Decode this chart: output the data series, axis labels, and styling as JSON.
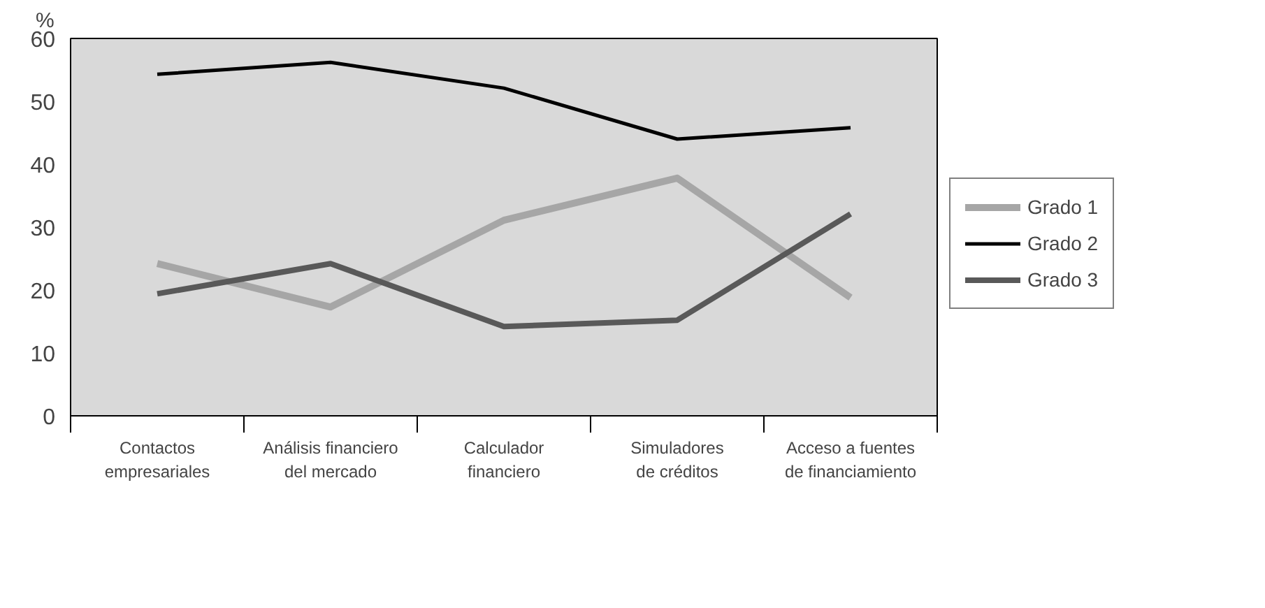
{
  "chart_data": {
    "type": "line",
    "ylabel": "%",
    "categories": [
      "Contactos\nempresariales",
      "Análisis financiero\ndel mercado",
      "Calculador\nfinanciero",
      "Simuladores\nde créditos",
      "Acceso a fuentes\nde financiamiento"
    ],
    "series": [
      {
        "name": "Grado 1",
        "color": "#a6a6a6",
        "values": [
          24.2,
          17.3,
          31.1,
          37.8,
          18.8
        ]
      },
      {
        "name": "Grado 2",
        "color": "#000000",
        "values": [
          54.3,
          56.2,
          52.1,
          44.0,
          45.8
        ]
      },
      {
        "name": "Grado 3",
        "color": "#595959",
        "values": [
          19.4,
          24.2,
          14.2,
          15.2,
          32.1
        ]
      }
    ],
    "ylim": [
      0,
      60
    ],
    "yticks": [
      0,
      10,
      20,
      30,
      40,
      50,
      60
    ],
    "grid": false,
    "legend": "right",
    "marker": "none",
    "line_style": "solid"
  }
}
